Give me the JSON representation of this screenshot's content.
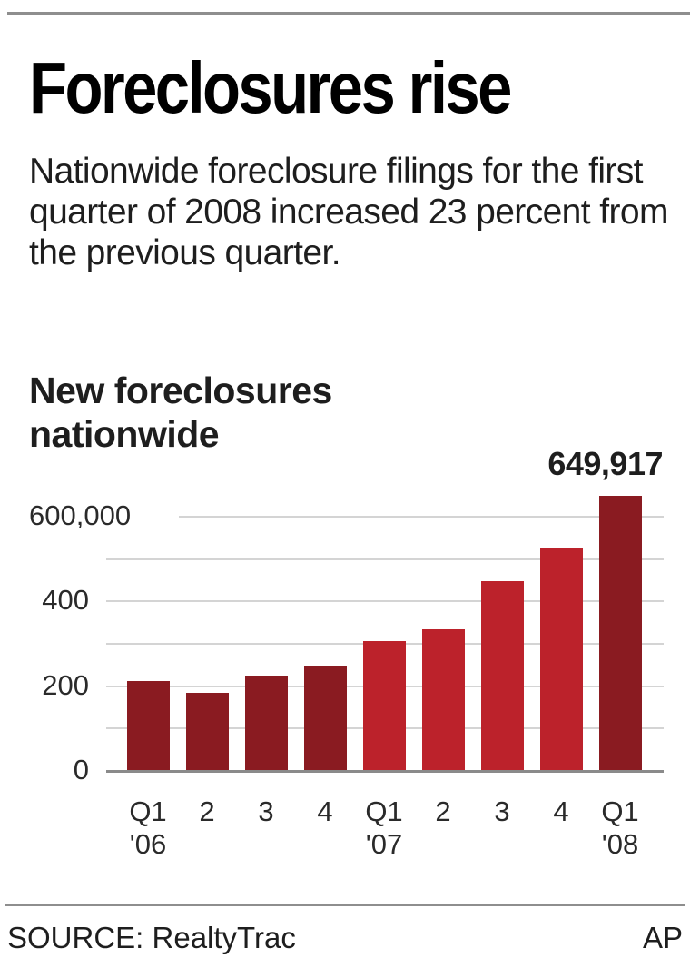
{
  "header": {
    "title": "Foreclosures rise",
    "subtitle": "Nationwide foreclosure filings for the first quarter of 2008 increased 23 percent from the previous quarter."
  },
  "chart_title": {
    "line1": "New foreclosures",
    "line2": "nationwide"
  },
  "colors": {
    "bar_2006": "#8a1b21",
    "bar_2007": "#bc222b",
    "bar_2008": "#8a1b21",
    "gridline": "#d4d4d4",
    "axis": "#8a8a8a",
    "rule": "#8e8e8e"
  },
  "chart_data": {
    "type": "bar",
    "title": "New foreclosures nationwide",
    "xlabel": "",
    "ylabel": "",
    "categories": [
      "Q1 '06",
      "Q2 '06",
      "Q3 '06",
      "Q4 '06",
      "Q1 '07",
      "Q2 '07",
      "Q3 '07",
      "Q4 '07",
      "Q1 '08"
    ],
    "tick_labels": [
      {
        "top": "Q1",
        "bottom": "'06"
      },
      {
        "top": "2",
        "bottom": ""
      },
      {
        "top": "3",
        "bottom": ""
      },
      {
        "top": "4",
        "bottom": ""
      },
      {
        "top": "Q1",
        "bottom": "'07"
      },
      {
        "top": "2",
        "bottom": ""
      },
      {
        "top": "3",
        "bottom": ""
      },
      {
        "top": "4",
        "bottom": ""
      },
      {
        "top": "Q1",
        "bottom": "'08"
      }
    ],
    "values": [
      212000,
      184000,
      225000,
      249000,
      306000,
      334000,
      448000,
      525000,
      649917
    ],
    "annotations": [
      {
        "category": "Q1 '08",
        "text": "649,917"
      }
    ],
    "yticks": [
      0,
      200000,
      400000,
      600000
    ],
    "ytick_labels": [
      "0",
      "200",
      "400",
      "600,000"
    ],
    "minor_gridlines": [
      100000,
      300000,
      500000
    ],
    "ylim": [
      0,
      650000
    ],
    "grid": true,
    "legend": null
  },
  "footer": {
    "source": "SOURCE: RealtyTrac",
    "credit": "AP"
  }
}
